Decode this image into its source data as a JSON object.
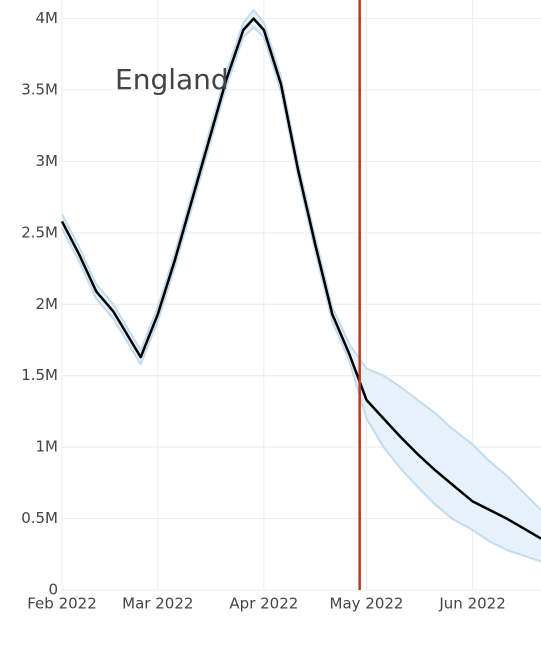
{
  "chart_data": {
    "type": "line",
    "annotation": "England",
    "x": [
      "2022-02-01",
      "2022-02-06",
      "2022-02-11",
      "2022-02-16",
      "2022-02-21",
      "2022-02-24",
      "2022-03-01",
      "2022-03-06",
      "2022-03-11",
      "2022-03-16",
      "2022-03-21",
      "2022-03-26",
      "2022-03-29",
      "2022-04-01",
      "2022-04-06",
      "2022-04-11",
      "2022-04-16",
      "2022-04-21",
      "2022-04-26",
      "2022-05-01",
      "2022-05-06",
      "2022-05-11",
      "2022-05-16",
      "2022-05-21",
      "2022-05-26",
      "2022-06-01",
      "2022-06-06",
      "2022-06-11",
      "2022-06-16",
      "2022-06-21"
    ],
    "series": [
      {
        "color": "#c3dbef",
        "values": [
          2630000,
          2400000,
          2140000,
          2000000,
          1800000,
          1680000,
          1980000,
          2360000,
          2780000,
          3200000,
          3620000,
          3970000,
          4060000,
          3970000,
          3590000,
          2990000,
          2470000,
          1980000,
          1720000,
          1550000,
          1500000,
          1420000,
          1330000,
          1240000,
          1130000,
          1020000,
          900000,
          800000,
          680000,
          560000
        ]
      },
      {
        "color": "#c3dbef",
        "values": [
          2530000,
          2300000,
          2040000,
          1900000,
          1700000,
          1580000,
          1880000,
          2260000,
          2680000,
          3100000,
          3520000,
          3870000,
          3940000,
          3870000,
          3490000,
          2890000,
          2370000,
          1880000,
          1600000,
          1200000,
          1000000,
          850000,
          720000,
          600000,
          500000,
          420000,
          340000,
          280000,
          240000,
          200000
        ]
      },
      {
        "color": "#000000",
        "values": [
          2580000,
          2350000,
          2090000,
          1950000,
          1750000,
          1630000,
          1930000,
          2310000,
          2730000,
          3150000,
          3570000,
          3920000,
          4000000,
          3920000,
          3540000,
          2940000,
          2420000,
          1930000,
          1650000,
          1330000,
          1200000,
          1070000,
          950000,
          840000,
          740000,
          620000,
          560000,
          500000,
          430000,
          360000
        ]
      }
    ],
    "band_fill": "#e6f1fa",
    "vline": {
      "x": "2022-04-29",
      "color": "#b83a1e"
    },
    "xlim": [
      "2022-02-01",
      "2022-06-21"
    ],
    "xticks": [
      {
        "value": "2022-02-01",
        "label": "Feb 2022"
      },
      {
        "value": "2022-03-01",
        "label": "Mar 2022"
      },
      {
        "value": "2022-04-01",
        "label": "Apr 2022"
      },
      {
        "value": "2022-05-01",
        "label": "May 2022"
      },
      {
        "value": "2022-06-01",
        "label": "Jun 2022"
      }
    ],
    "ylim": [
      0,
      4130000
    ],
    "yticks": [
      0,
      {
        "value": 500000,
        "label": "0.5M"
      },
      {
        "value": 1000000,
        "label": "1M"
      },
      {
        "value": 1500000,
        "label": "1.5M"
      },
      {
        "value": 2000000,
        "label": "2M"
      },
      {
        "value": 2500000,
        "label": "2.5M"
      },
      {
        "value": 3000000,
        "label": "3M"
      },
      {
        "value": 3500000,
        "label": "3.5M"
      },
      {
        "value": 4000000,
        "label": "4M"
      }
    ],
    "grid": true
  }
}
